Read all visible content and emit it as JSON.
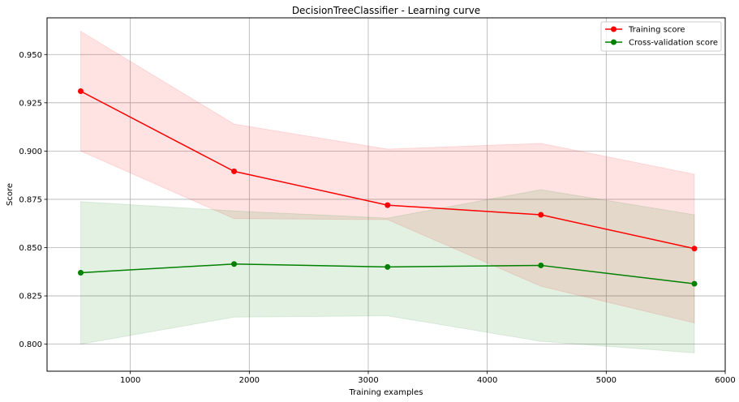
{
  "chart_data": {
    "type": "line",
    "title": "DecisionTreeClassifier - Learning curve",
    "xlabel": "Training examples",
    "ylabel": "Score",
    "xlim": [
      300,
      6000
    ],
    "ylim": [
      0.786,
      0.969
    ],
    "x_ticks": [
      1000,
      2000,
      3000,
      4000,
      5000,
      6000
    ],
    "y_ticks": [
      0.8,
      0.825,
      0.85,
      0.875,
      0.9,
      0.925,
      0.95
    ],
    "x_tick_labels": [
      "1000",
      "2000",
      "3000",
      "4000",
      "5000",
      "6000"
    ],
    "y_tick_labels": [
      "0.800",
      "0.825",
      "0.850",
      "0.875",
      "0.900",
      "0.925",
      "0.950"
    ],
    "grid": true,
    "legend_position": "top-right",
    "x": [
      583,
      1872,
      3162,
      4451,
      5741
    ],
    "series": [
      {
        "name": "Training score",
        "color": "#ff0000",
        "band_color": "#ff0000",
        "values": [
          0.931,
          0.8895,
          0.872,
          0.867,
          0.8495
        ],
        "lower": [
          0.9,
          0.865,
          0.8645,
          0.83,
          0.811
        ],
        "upper": [
          0.962,
          0.914,
          0.901,
          0.904,
          0.888
        ]
      },
      {
        "name": "Cross-validation score",
        "color": "#008000",
        "band_color": "#008000",
        "values": [
          0.837,
          0.8415,
          0.84,
          0.8408,
          0.8313
        ],
        "lower": [
          0.8,
          0.814,
          0.8147,
          0.8015,
          0.7955
        ],
        "upper": [
          0.8738,
          0.869,
          0.8653,
          0.88,
          0.867
        ]
      }
    ]
  }
}
